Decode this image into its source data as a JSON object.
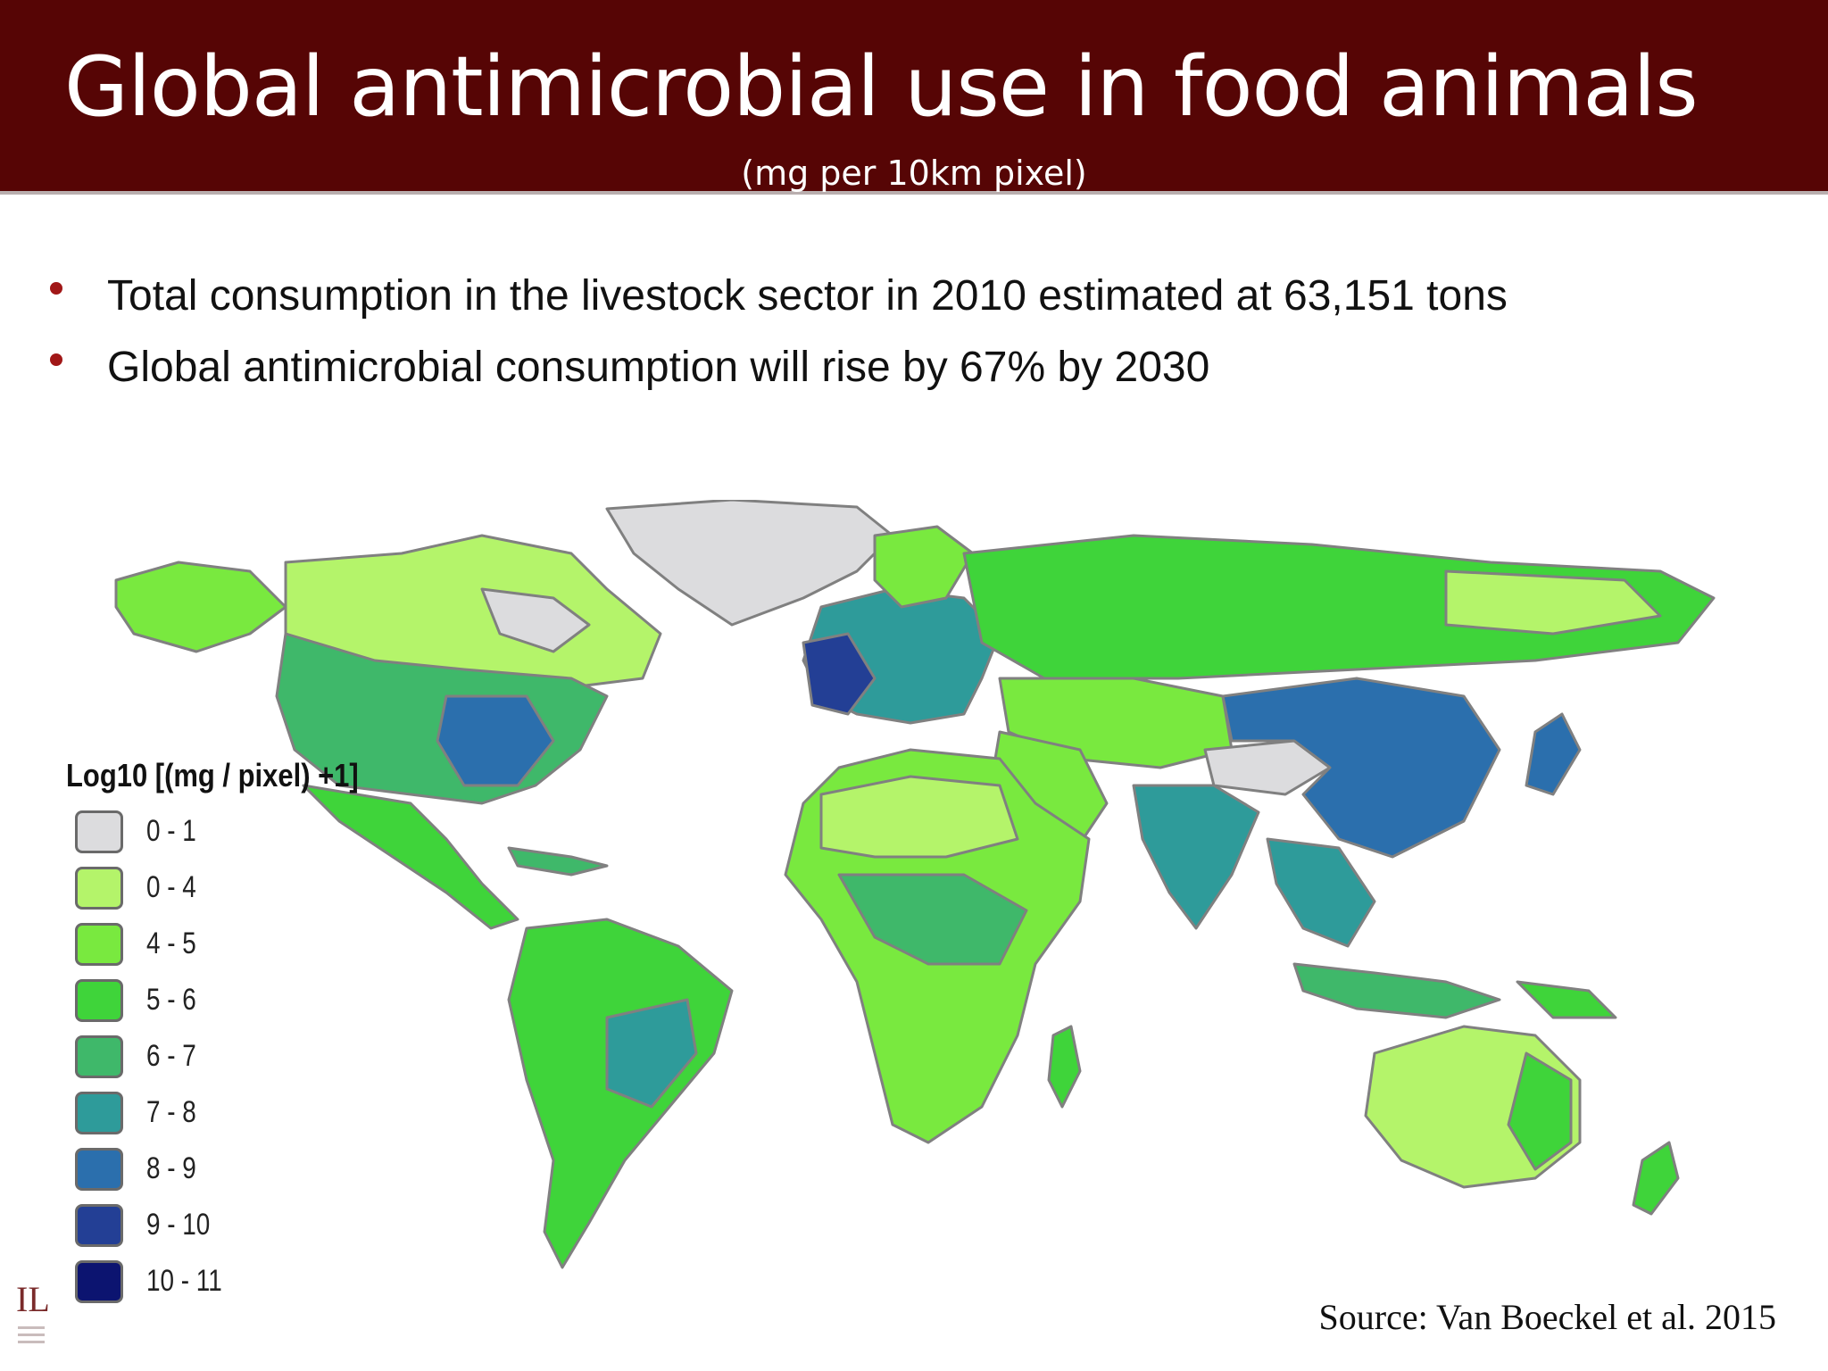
{
  "header": {
    "title": "Global antimicrobial use in food animals",
    "subtitle": "(mg per 10km pixel)"
  },
  "bullets": [
    "Total consumption in the livestock sector in 2010 estimated at 63,151 tons",
    "Global antimicrobial consumption will rise by 67% by 2030"
  ],
  "legend": {
    "title": "Log10 [(mg / pixel) +1]",
    "items": [
      {
        "label": "0 - 1",
        "color": "#dcdcde"
      },
      {
        "label": "0 - 4",
        "color": "#b4f46a"
      },
      {
        "label": "4 - 5",
        "color": "#79e93f"
      },
      {
        "label": "5 - 6",
        "color": "#3fd43a"
      },
      {
        "label": "6 - 7",
        "color": "#3fb86a"
      },
      {
        "label": "7 - 8",
        "color": "#2e9b9a"
      },
      {
        "label": "8 - 9",
        "color": "#2b6fad"
      },
      {
        "label": "9 - 10",
        "color": "#233f95"
      },
      {
        "label": "10 - 11",
        "color": "#0c1470"
      }
    ]
  },
  "source": "Source: Van Boeckel et al. 2015",
  "logo": {
    "text": "IL"
  },
  "colors": {
    "header_bg": "#560505",
    "bullet_dot": "#a11717",
    "border": "#808080"
  }
}
